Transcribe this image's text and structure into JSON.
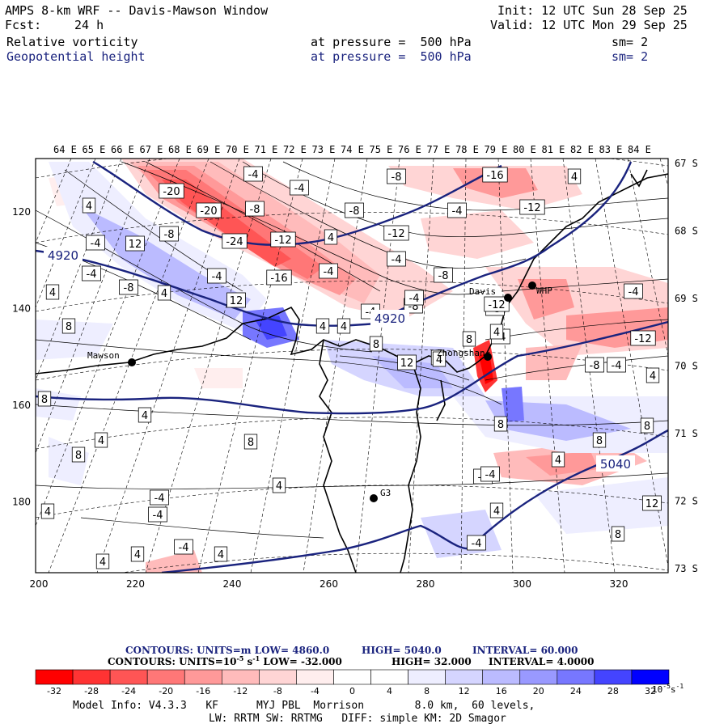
{
  "header": {
    "title": "AMPS 8-km WRF -- Davis-Mawson Window",
    "init": "Init: 12 UTC Sun 28 Sep 25",
    "fcst_label": "Fcst:",
    "fcst_value": "24 h",
    "valid": "Valid: 12 UTC Mon 29 Sep 25",
    "field1": "Relative vorticity",
    "field1_level": "at pressure =  500 hPa",
    "field1_sm": "sm= 2",
    "field2": "Geopotential height",
    "field2_level": "at pressure =  500 hPa",
    "field2_sm": "sm= 2"
  },
  "colors": {
    "height_contour": "#1a237e",
    "coast": "#000000",
    "neg_strong": "#ff0000",
    "pos_strong": "#0000ff"
  },
  "axes": {
    "top_lon": [
      "64 E",
      "65 E",
      "66 E",
      "67 E",
      "68 E",
      "69 E",
      "70 E",
      "71 E",
      "72 E",
      "73 E",
      "74 E",
      "75 E",
      "76 E",
      "77 E",
      "78 E",
      "79 E",
      "80 E",
      "81 E",
      "82 E",
      "83 E",
      "84 E"
    ],
    "right_lat": [
      "67 S",
      "68 S",
      "69 S",
      "70 S",
      "71 S",
      "72 S",
      "73 S"
    ],
    "bottom_x": [
      "200",
      "220",
      "240",
      "260",
      "280",
      "300",
      "320"
    ],
    "left_y": [
      "120",
      "140",
      "160",
      "180"
    ]
  },
  "stations": [
    "Mawson",
    "Davis",
    "WHP",
    "Zhongshan",
    "G3"
  ],
  "contour_labels": {
    "height": [
      "4920",
      "4920",
      "5040"
    ],
    "vort": [
      "-20",
      "-20",
      "-8",
      "-8",
      "-4",
      "-4",
      "-8",
      "-8",
      "-16",
      "4",
      "-4",
      "4",
      "-4",
      "12",
      "-8",
      "-24",
      "-12",
      "4",
      "-12",
      "-4",
      "-4",
      "-8",
      "-12",
      "4",
      "-4",
      "-16",
      "-4",
      "4",
      "-8",
      "-4",
      "4",
      "12",
      "8",
      "4",
      "8",
      "-8",
      "8",
      "4",
      "-8",
      "-4",
      "-4",
      "4",
      "12",
      "-4",
      "8",
      "-12",
      "-8",
      "-4",
      "4",
      "8",
      "8",
      "4",
      "8",
      "4",
      "12",
      "4",
      "-4",
      "8",
      "-12",
      "4",
      "4",
      "-4",
      "-4",
      "4",
      "4",
      "-4",
      "8",
      "4",
      "8",
      "4",
      "-4",
      "4"
    ]
  },
  "footer": {
    "c1_units": "CONTOURS:  UNITS=m  LOW=   4860.0",
    "c1_high": "HIGH=  5040.0",
    "c1_int": "INTERVAL=   60.000",
    "c2_units": "CONTOURS:  UNITS=10",
    "c2_exp": "-5",
    "c2_unit2": " s",
    "c2_exp2": "-1",
    "c2_low": "  LOW=  -32.000",
    "c2_high": "HIGH=  32.000",
    "c2_int": "INTERVAL=   4.0000",
    "cbar_ticks": [
      "-32",
      "-28",
      "-24",
      "-20",
      "-16",
      "-12",
      "-8",
      "-4",
      "0",
      "4",
      "8",
      "12",
      "16",
      "20",
      "24",
      "28",
      "32"
    ],
    "cbar_unit": "10",
    "cbar_unit_exp": "-5",
    "cbar_unit_s": "s",
    "cbar_unit_exp2": "-1",
    "model_info": "Model Info: V4.3.3   KF      MYJ PBL  Morrison        8.0 km,  60 levels,",
    "model_info2": "LW: RRTM SW: RRTMG   DIFF: simple KM: 2D Smagor"
  },
  "cbar_colors": [
    "#ff0000",
    "#ff3333",
    "#ff5555",
    "#ff7777",
    "#ff9999",
    "#ffbbbb",
    "#ffd5d5",
    "#ffeeee",
    "#ffffff",
    "#ffffff",
    "#eeeeff",
    "#d5d5ff",
    "#bbbbff",
    "#9999ff",
    "#7777ff",
    "#4444ff",
    "#0000ff"
  ]
}
